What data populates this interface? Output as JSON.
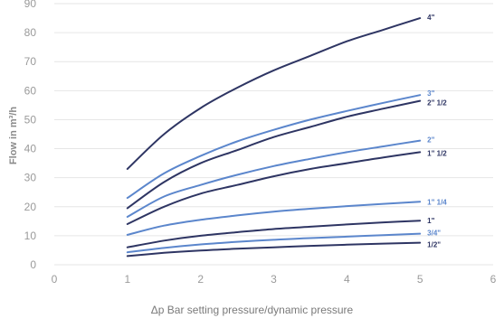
{
  "chart_data": {
    "type": "line",
    "xlabel": "Δp Bar setting pressure/dynamic pressure",
    "ylabel": "Flow in m³/h",
    "xlim": [
      0,
      6
    ],
    "ylim": [
      0,
      90
    ],
    "xticks": [
      "0",
      "1",
      "2",
      "3",
      "4",
      "5",
      "6"
    ],
    "yticks": [
      "0",
      "10",
      "20",
      "30",
      "40",
      "50",
      "60",
      "70",
      "80",
      "90"
    ],
    "grid": "horizontal",
    "legend": "inline labels at line ends",
    "series": [
      {
        "name": "4\"",
        "color": "#2e3563",
        "x": [
          1,
          1.5,
          2,
          2.5,
          3,
          3.5,
          4,
          4.5,
          5
        ],
        "y": [
          33,
          45,
          54,
          61,
          67,
          72,
          77,
          81,
          85
        ]
      },
      {
        "name": "3\"",
        "color": "#5b86cc",
        "x": [
          1,
          1.5,
          2,
          2.5,
          3,
          3.5,
          4,
          4.5,
          5
        ],
        "y": [
          23,
          31.5,
          37.5,
          42.5,
          46.5,
          50,
          53,
          55.8,
          58.5
        ]
      },
      {
        "name": "2\" 1/2",
        "color": "#2e3563",
        "x": [
          1,
          1.5,
          2,
          2.5,
          3,
          3.5,
          4,
          4.5,
          5
        ],
        "y": [
          19.5,
          28.5,
          35,
          39.5,
          44,
          47.5,
          51,
          53.8,
          56.5
        ]
      },
      {
        "name": "2\"",
        "color": "#5b86cc",
        "x": [
          1,
          1.5,
          2,
          2.5,
          3,
          3.5,
          4,
          4.5,
          5
        ],
        "y": [
          16.5,
          23.5,
          27.5,
          31,
          34,
          36.5,
          38.8,
          40.8,
          42.8
        ]
      },
      {
        "name": "1\" 1/2",
        "color": "#2e3563",
        "x": [
          1,
          1.5,
          2,
          2.5,
          3,
          3.5,
          4,
          4.5,
          5
        ],
        "y": [
          14,
          20,
          24.5,
          27.5,
          30.5,
          33,
          35,
          37,
          38.8
        ]
      },
      {
        "name": "1\" 1/4",
        "color": "#5b86cc",
        "x": [
          1,
          1.5,
          2,
          2.5,
          3,
          3.5,
          4,
          4.5,
          5
        ],
        "y": [
          10.3,
          13.5,
          15.5,
          17,
          18.3,
          19.3,
          20.2,
          21,
          21.7
        ]
      },
      {
        "name": "1\"",
        "color": "#2e3563",
        "x": [
          1,
          1.5,
          2,
          2.5,
          3,
          3.5,
          4,
          4.5,
          5
        ],
        "y": [
          6,
          8.3,
          10,
          11.2,
          12.3,
          13.1,
          13.9,
          14.6,
          15.2
        ]
      },
      {
        "name": "3/4\"",
        "color": "#5b86cc",
        "x": [
          1,
          1.5,
          2,
          2.5,
          3,
          3.5,
          4,
          4.5,
          5
        ],
        "y": [
          4.3,
          5.8,
          7,
          7.9,
          8.6,
          9.2,
          9.7,
          10.2,
          10.7
        ]
      },
      {
        "name": "1/2\"",
        "color": "#2e3563",
        "x": [
          1,
          1.5,
          2,
          2.5,
          3,
          3.5,
          4,
          4.5,
          5
        ],
        "y": [
          3,
          4.1,
          4.9,
          5.5,
          6,
          6.5,
          6.9,
          7.3,
          7.6
        ]
      }
    ]
  }
}
